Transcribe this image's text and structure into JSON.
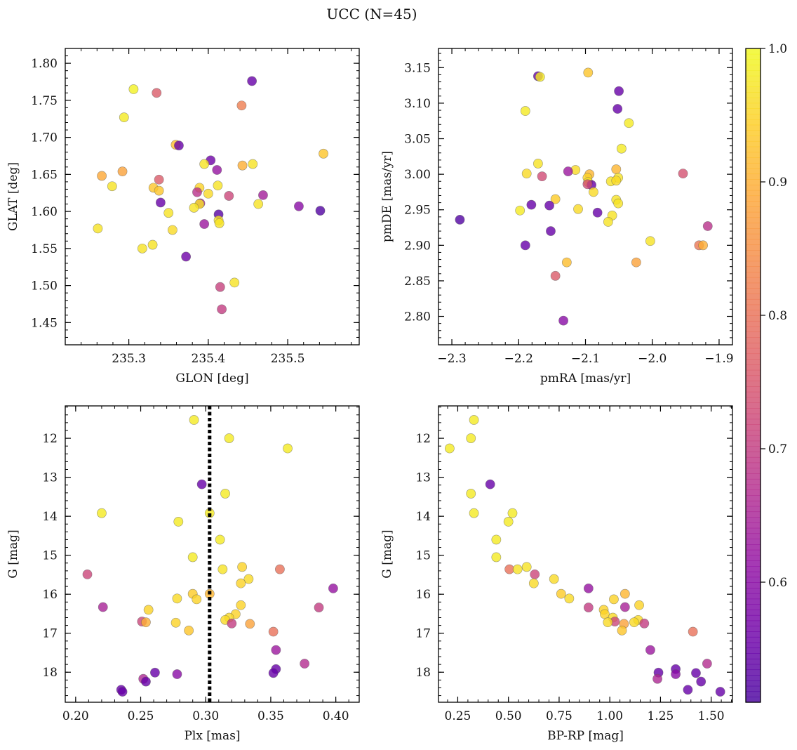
{
  "chart_data": [
    {
      "type": "scatter",
      "xlabel": "GLON [deg]",
      "ylabel": "GLAT [deg]",
      "xlim": [
        235.22,
        235.59
      ],
      "ylim": [
        1.42,
        1.82
      ],
      "xticks": [
        235.3,
        235.4,
        235.5
      ],
      "xtick_labels": [
        "235.3",
        "235.4",
        "235.5"
      ],
      "yticks": [
        1.45,
        1.5,
        1.55,
        1.6,
        1.65,
        1.7,
        1.75,
        1.8
      ],
      "ytick_labels": [
        "1.45",
        "1.50",
        "1.55",
        "1.60",
        "1.65",
        "1.70",
        "1.75",
        "1.80"
      ],
      "points": [
        {
          "x": 235.306,
          "y": 1.765,
          "c": 0.99
        },
        {
          "x": 235.335,
          "y": 1.76,
          "c": 0.76
        },
        {
          "x": 235.294,
          "y": 1.727,
          "c": 0.98
        },
        {
          "x": 235.455,
          "y": 1.776,
          "c": 0.55
        },
        {
          "x": 235.442,
          "y": 1.743,
          "c": 0.82
        },
        {
          "x": 235.359,
          "y": 1.69,
          "c": 0.92
        },
        {
          "x": 235.363,
          "y": 1.689,
          "c": 0.55
        },
        {
          "x": 235.545,
          "y": 1.678,
          "c": 0.93
        },
        {
          "x": 235.403,
          "y": 1.669,
          "c": 0.56
        },
        {
          "x": 235.395,
          "y": 1.664,
          "c": 0.97
        },
        {
          "x": 235.456,
          "y": 1.664,
          "c": 0.97
        },
        {
          "x": 235.443,
          "y": 1.662,
          "c": 0.9
        },
        {
          "x": 235.411,
          "y": 1.656,
          "c": 0.62
        },
        {
          "x": 235.292,
          "y": 1.654,
          "c": 0.88
        },
        {
          "x": 235.266,
          "y": 1.648,
          "c": 0.89
        },
        {
          "x": 235.338,
          "y": 1.643,
          "c": 0.76
        },
        {
          "x": 235.412,
          "y": 1.635,
          "c": 0.97
        },
        {
          "x": 235.279,
          "y": 1.634,
          "c": 0.97
        },
        {
          "x": 235.331,
          "y": 1.632,
          "c": 0.93
        },
        {
          "x": 235.389,
          "y": 1.632,
          "c": 0.95
        },
        {
          "x": 235.338,
          "y": 1.628,
          "c": 0.93
        },
        {
          "x": 235.386,
          "y": 1.626,
          "c": 0.68
        },
        {
          "x": 235.4,
          "y": 1.624,
          "c": 0.96
        },
        {
          "x": 235.426,
          "y": 1.621,
          "c": 0.72
        },
        {
          "x": 235.469,
          "y": 1.622,
          "c": 0.64
        },
        {
          "x": 235.34,
          "y": 1.612,
          "c": 0.55
        },
        {
          "x": 235.39,
          "y": 1.611,
          "c": 0.66
        },
        {
          "x": 235.389,
          "y": 1.61,
          "c": 0.97
        },
        {
          "x": 235.463,
          "y": 1.61,
          "c": 0.97
        },
        {
          "x": 235.382,
          "y": 1.605,
          "c": 0.97
        },
        {
          "x": 235.514,
          "y": 1.607,
          "c": 0.6
        },
        {
          "x": 235.541,
          "y": 1.601,
          "c": 0.52
        },
        {
          "x": 235.35,
          "y": 1.598,
          "c": 0.97
        },
        {
          "x": 235.413,
          "y": 1.596,
          "c": 0.53
        },
        {
          "x": 235.413,
          "y": 1.588,
          "c": 0.97
        },
        {
          "x": 235.414,
          "y": 1.584,
          "c": 0.97
        },
        {
          "x": 235.395,
          "y": 1.583,
          "c": 0.63
        },
        {
          "x": 235.261,
          "y": 1.577,
          "c": 0.97
        },
        {
          "x": 235.355,
          "y": 1.575,
          "c": 0.96
        },
        {
          "x": 235.33,
          "y": 1.555,
          "c": 0.97
        },
        {
          "x": 235.317,
          "y": 1.55,
          "c": 0.97
        },
        {
          "x": 235.372,
          "y": 1.539,
          "c": 0.56
        },
        {
          "x": 235.433,
          "y": 1.504,
          "c": 0.97
        },
        {
          "x": 235.415,
          "y": 1.498,
          "c": 0.71
        },
        {
          "x": 235.417,
          "y": 1.468,
          "c": 0.7
        }
      ]
    },
    {
      "type": "scatter",
      "xlabel": "pmRA [mas/yr]",
      "ylabel": "pmDE [mas/yr]",
      "xlim": [
        -2.32,
        -1.88
      ],
      "ylim": [
        2.76,
        3.177
      ],
      "xticks": [
        -2.3,
        -2.2,
        -2.1,
        -2.0,
        -1.9
      ],
      "xtick_labels": [
        "−2.3",
        "−2.2",
        "−2.1",
        "−2.0",
        "−1.9"
      ],
      "yticks": [
        2.8,
        2.85,
        2.9,
        2.95,
        3.0,
        3.05,
        3.1,
        3.15
      ],
      "ytick_labels": [
        "2.80",
        "2.85",
        "2.90",
        "2.95",
        "3.00",
        "3.05",
        "3.10",
        "3.15"
      ],
      "points": [
        {
          "x": -2.171,
          "y": 3.138,
          "c": 0.55
        },
        {
          "x": -2.168,
          "y": 3.137,
          "c": 0.98
        },
        {
          "x": -2.096,
          "y": 3.143,
          "c": 0.93
        },
        {
          "x": -2.05,
          "y": 3.117,
          "c": 0.55
        },
        {
          "x": -2.052,
          "y": 3.092,
          "c": 0.55
        },
        {
          "x": -2.19,
          "y": 3.089,
          "c": 0.98
        },
        {
          "x": -2.035,
          "y": 3.072,
          "c": 0.98
        },
        {
          "x": -2.046,
          "y": 3.036,
          "c": 0.98
        },
        {
          "x": -2.171,
          "y": 3.015,
          "c": 0.97
        },
        {
          "x": -2.115,
          "y": 3.006,
          "c": 0.96
        },
        {
          "x": -2.054,
          "y": 3.007,
          "c": 0.91
        },
        {
          "x": -2.126,
          "y": 3.004,
          "c": 0.63
        },
        {
          "x": -2.188,
          "y": 3.001,
          "c": 0.96
        },
        {
          "x": -2.094,
          "y": 3.0,
          "c": 0.91
        },
        {
          "x": -2.165,
          "y": 2.997,
          "c": 0.73
        },
        {
          "x": -1.954,
          "y": 3.001,
          "c": 0.74
        },
        {
          "x": -2.051,
          "y": 2.995,
          "c": 0.97
        },
        {
          "x": -2.097,
          "y": 2.995,
          "c": 0.95
        },
        {
          "x": -2.096,
          "y": 2.989,
          "c": 0.97
        },
        {
          "x": -2.062,
          "y": 2.99,
          "c": 0.97
        },
        {
          "x": -2.054,
          "y": 2.991,
          "c": 0.96
        },
        {
          "x": -2.091,
          "y": 2.985,
          "c": 0.55
        },
        {
          "x": -2.097,
          "y": 2.986,
          "c": 0.73
        },
        {
          "x": -2.088,
          "y": 2.975,
          "c": 0.96
        },
        {
          "x": -2.145,
          "y": 2.965,
          "c": 0.94
        },
        {
          "x": -2.054,
          "y": 2.964,
          "c": 0.97
        },
        {
          "x": -2.051,
          "y": 2.959,
          "c": 0.97
        },
        {
          "x": -2.181,
          "y": 2.957,
          "c": 0.55
        },
        {
          "x": -2.154,
          "y": 2.956,
          "c": 0.55
        },
        {
          "x": -2.111,
          "y": 2.951,
          "c": 0.96
        },
        {
          "x": -2.198,
          "y": 2.949,
          "c": 0.98
        },
        {
          "x": -2.082,
          "y": 2.946,
          "c": 0.55
        },
        {
          "x": -2.06,
          "y": 2.942,
          "c": 0.97
        },
        {
          "x": -2.288,
          "y": 2.936,
          "c": 0.52
        },
        {
          "x": -2.066,
          "y": 2.933,
          "c": 0.97
        },
        {
          "x": -1.917,
          "y": 2.927,
          "c": 0.68
        },
        {
          "x": -2.152,
          "y": 2.92,
          "c": 0.55
        },
        {
          "x": -2.003,
          "y": 2.906,
          "c": 0.97
        },
        {
          "x": -2.19,
          "y": 2.9,
          "c": 0.55
        },
        {
          "x": -1.93,
          "y": 2.9,
          "c": 0.81
        },
        {
          "x": -1.924,
          "y": 2.9,
          "c": 0.9
        },
        {
          "x": -2.128,
          "y": 2.876,
          "c": 0.92
        },
        {
          "x": -2.024,
          "y": 2.876,
          "c": 0.88
        },
        {
          "x": -2.145,
          "y": 2.857,
          "c": 0.76
        },
        {
          "x": -2.133,
          "y": 2.794,
          "c": 0.6
        }
      ]
    },
    {
      "type": "scatter",
      "xlabel": "Plx [mas]",
      "ylabel": "G [mag]",
      "xlim": [
        0.192,
        0.418
      ],
      "ylim": [
        18.77,
        11.17
      ],
      "y_inverted": true,
      "vline": 0.303,
      "xticks": [
        0.2,
        0.25,
        0.3,
        0.35,
        0.4
      ],
      "xtick_labels": [
        "0.20",
        "0.25",
        "0.30",
        "0.35",
        "0.40"
      ],
      "yticks": [
        12,
        13,
        14,
        15,
        16,
        17,
        18
      ],
      "ytick_labels": [
        "12",
        "13",
        "14",
        "15",
        "16",
        "17",
        "18"
      ],
      "points": [
        {
          "x": 0.291,
          "y": 11.53,
          "c": 0.98
        },
        {
          "x": 0.318,
          "y": 12.0,
          "c": 0.98
        },
        {
          "x": 0.363,
          "y": 12.26,
          "c": 0.98
        },
        {
          "x": 0.297,
          "y": 13.18,
          "c": 0.55
        },
        {
          "x": 0.315,
          "y": 13.42,
          "c": 0.98
        },
        {
          "x": 0.22,
          "y": 13.92,
          "c": 0.98
        },
        {
          "x": 0.303,
          "y": 13.92,
          "c": 0.98
        },
        {
          "x": 0.279,
          "y": 14.14,
          "c": 0.98
        },
        {
          "x": 0.311,
          "y": 14.6,
          "c": 0.98
        },
        {
          "x": 0.29,
          "y": 15.05,
          "c": 0.98
        },
        {
          "x": 0.328,
          "y": 15.3,
          "c": 0.95
        },
        {
          "x": 0.313,
          "y": 15.36,
          "c": 0.97
        },
        {
          "x": 0.357,
          "y": 15.36,
          "c": 0.8
        },
        {
          "x": 0.209,
          "y": 15.49,
          "c": 0.72
        },
        {
          "x": 0.333,
          "y": 15.61,
          "c": 0.96
        },
        {
          "x": 0.327,
          "y": 15.72,
          "c": 0.95
        },
        {
          "x": 0.398,
          "y": 15.85,
          "c": 0.62
        },
        {
          "x": 0.29,
          "y": 15.99,
          "c": 0.94
        },
        {
          "x": 0.303,
          "y": 15.99,
          "c": 0.91
        },
        {
          "x": 0.278,
          "y": 16.11,
          "c": 0.96
        },
        {
          "x": 0.293,
          "y": 16.13,
          "c": 0.95
        },
        {
          "x": 0.327,
          "y": 16.28,
          "c": 0.95
        },
        {
          "x": 0.221,
          "y": 16.33,
          "c": 0.65
        },
        {
          "x": 0.387,
          "y": 16.34,
          "c": 0.7
        },
        {
          "x": 0.256,
          "y": 16.4,
          "c": 0.95
        },
        {
          "x": 0.323,
          "y": 16.51,
          "c": 0.95
        },
        {
          "x": 0.318,
          "y": 16.6,
          "c": 0.96
        },
        {
          "x": 0.315,
          "y": 16.66,
          "c": 0.96
        },
        {
          "x": 0.251,
          "y": 16.7,
          "c": 0.72
        },
        {
          "x": 0.254,
          "y": 16.72,
          "c": 0.9
        },
        {
          "x": 0.277,
          "y": 16.73,
          "c": 0.95
        },
        {
          "x": 0.32,
          "y": 16.75,
          "c": 0.7
        },
        {
          "x": 0.334,
          "y": 16.76,
          "c": 0.88
        },
        {
          "x": 0.287,
          "y": 16.93,
          "c": 0.93
        },
        {
          "x": 0.352,
          "y": 16.96,
          "c": 0.8
        },
        {
          "x": 0.354,
          "y": 17.43,
          "c": 0.63
        },
        {
          "x": 0.376,
          "y": 17.78,
          "c": 0.67
        },
        {
          "x": 0.354,
          "y": 17.92,
          "c": 0.55
        },
        {
          "x": 0.261,
          "y": 18.01,
          "c": 0.55
        },
        {
          "x": 0.352,
          "y": 18.02,
          "c": 0.55
        },
        {
          "x": 0.278,
          "y": 18.05,
          "c": 0.6
        },
        {
          "x": 0.252,
          "y": 18.17,
          "c": 0.66
        },
        {
          "x": 0.254,
          "y": 18.24,
          "c": 0.55
        },
        {
          "x": 0.235,
          "y": 18.45,
          "c": 0.55
        },
        {
          "x": 0.236,
          "y": 18.5,
          "c": 0.55
        }
      ]
    },
    {
      "type": "scatter",
      "xlabel": "BP-RP [mag]",
      "ylabel": "G [mag]",
      "xlim": [
        0.155,
        1.605
      ],
      "ylim": [
        18.77,
        11.17
      ],
      "y_inverted": true,
      "xticks": [
        0.25,
        0.5,
        0.75,
        1.0,
        1.25,
        1.5
      ],
      "xtick_labels": [
        "0.25",
        "0.50",
        "0.75",
        "1.00",
        "1.25",
        "1.50"
      ],
      "yticks": [
        12,
        13,
        14,
        15,
        16,
        17,
        18
      ],
      "ytick_labels": [
        "12",
        "13",
        "14",
        "15",
        "16",
        "17",
        "18"
      ],
      "points": [
        {
          "x": 0.33,
          "y": 11.53,
          "c": 0.98
        },
        {
          "x": 0.315,
          "y": 12.0,
          "c": 0.98
        },
        {
          "x": 0.21,
          "y": 12.26,
          "c": 0.98
        },
        {
          "x": 0.41,
          "y": 13.18,
          "c": 0.55
        },
        {
          "x": 0.315,
          "y": 13.42,
          "c": 0.98
        },
        {
          "x": 0.33,
          "y": 13.92,
          "c": 0.98
        },
        {
          "x": 0.52,
          "y": 13.92,
          "c": 0.98
        },
        {
          "x": 0.5,
          "y": 14.14,
          "c": 0.98
        },
        {
          "x": 0.44,
          "y": 14.6,
          "c": 0.98
        },
        {
          "x": 0.44,
          "y": 15.05,
          "c": 0.98
        },
        {
          "x": 0.59,
          "y": 15.3,
          "c": 0.97
        },
        {
          "x": 0.505,
          "y": 15.36,
          "c": 0.8
        },
        {
          "x": 0.545,
          "y": 15.36,
          "c": 0.97
        },
        {
          "x": 0.63,
          "y": 15.49,
          "c": 0.72
        },
        {
          "x": 0.725,
          "y": 15.61,
          "c": 0.96
        },
        {
          "x": 0.625,
          "y": 15.72,
          "c": 0.96
        },
        {
          "x": 0.895,
          "y": 15.85,
          "c": 0.62
        },
        {
          "x": 0.76,
          "y": 15.99,
          "c": 0.94
        },
        {
          "x": 1.075,
          "y": 15.99,
          "c": 0.91
        },
        {
          "x": 0.8,
          "y": 16.11,
          "c": 0.96
        },
        {
          "x": 1.02,
          "y": 16.13,
          "c": 0.95
        },
        {
          "x": 1.145,
          "y": 16.28,
          "c": 0.95
        },
        {
          "x": 0.895,
          "y": 16.34,
          "c": 0.7
        },
        {
          "x": 1.075,
          "y": 16.33,
          "c": 0.65
        },
        {
          "x": 0.97,
          "y": 16.4,
          "c": 0.95
        },
        {
          "x": 0.975,
          "y": 16.51,
          "c": 0.95
        },
        {
          "x": 1.015,
          "y": 16.6,
          "c": 0.96
        },
        {
          "x": 1.14,
          "y": 16.66,
          "c": 0.96
        },
        {
          "x": 1.025,
          "y": 16.7,
          "c": 0.72
        },
        {
          "x": 0.99,
          "y": 16.72,
          "c": 0.96
        },
        {
          "x": 1.12,
          "y": 16.72,
          "c": 0.96
        },
        {
          "x": 1.17,
          "y": 16.75,
          "c": 0.7
        },
        {
          "x": 1.07,
          "y": 16.76,
          "c": 0.88
        },
        {
          "x": 1.06,
          "y": 16.93,
          "c": 0.93
        },
        {
          "x": 1.41,
          "y": 16.96,
          "c": 0.8
        },
        {
          "x": 1.2,
          "y": 17.43,
          "c": 0.63
        },
        {
          "x": 1.48,
          "y": 17.78,
          "c": 0.67
        },
        {
          "x": 1.325,
          "y": 17.92,
          "c": 0.55
        },
        {
          "x": 1.24,
          "y": 18.01,
          "c": 0.55
        },
        {
          "x": 1.425,
          "y": 18.02,
          "c": 0.55
        },
        {
          "x": 1.325,
          "y": 18.05,
          "c": 0.6
        },
        {
          "x": 1.235,
          "y": 18.17,
          "c": 0.66
        },
        {
          "x": 1.45,
          "y": 18.24,
          "c": 0.55
        },
        {
          "x": 1.385,
          "y": 18.45,
          "c": 0.55
        },
        {
          "x": 1.545,
          "y": 18.5,
          "c": 0.55
        }
      ]
    }
  ],
  "figure": {
    "title": "UCC (N=45)",
    "colormap": "plasma",
    "colorbar": {
      "range": [
        0.51,
        1.0
      ],
      "ticks": [
        0.6,
        0.7,
        0.8,
        0.9,
        1.0
      ],
      "tick_labels": [
        "0.6",
        "0.7",
        "0.8",
        "0.9",
        "1.0"
      ]
    },
    "marker_alpha": 0.8,
    "vline_color": "#000000"
  }
}
